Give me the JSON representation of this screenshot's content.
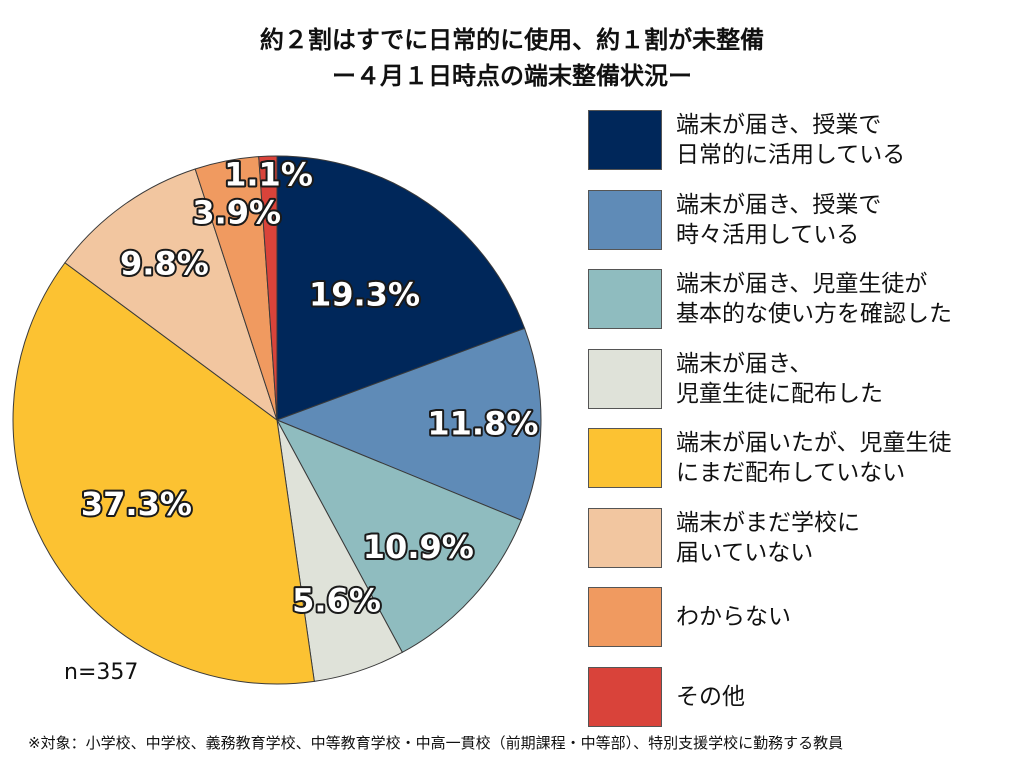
{
  "title": {
    "line1": "約２割はすでに日常的に使用、約１割が未整備",
    "line2": "ー４月１日時点の端末整備状況ー"
  },
  "chart_data": {
    "type": "pie",
    "slices": [
      {
        "label_lines": [
          "端末が届き、授業で",
          "日常的に活用している"
        ],
        "value": 19.3,
        "value_label": "19.3%",
        "color": "#00275a"
      },
      {
        "label_lines": [
          "端末が届き、授業で",
          "時々活用している"
        ],
        "value": 11.8,
        "value_label": "11.8%",
        "color": "#5f8bb7"
      },
      {
        "label_lines": [
          "端末が届き、児童生徒が",
          "基本的な使い方を確認した"
        ],
        "value": 10.9,
        "value_label": "10.9%",
        "color": "#8fbcbf"
      },
      {
        "label_lines": [
          "端末が届き、",
          "児童生徒に配布した"
        ],
        "value": 5.6,
        "value_label": "5.6%",
        "color": "#dfe2d9"
      },
      {
        "label_lines": [
          "端末が届いたが、児童生徒",
          "にまだ配布していない"
        ],
        "value": 37.3,
        "value_label": "37.3%",
        "color": "#fcc232"
      },
      {
        "label_lines": [
          "端末がまだ学校に",
          "届いていない"
        ],
        "value": 9.8,
        "value_label": "9.8%",
        "color": "#f2c6a0"
      },
      {
        "label_lines": [
          "わからない"
        ],
        "value": 3.9,
        "value_label": "3.9%",
        "color": "#f09a60"
      },
      {
        "label_lines": [
          "その他"
        ],
        "value": 1.1,
        "value_label": "1.1%",
        "color": "#d9433a"
      }
    ],
    "legend_placement": "right"
  },
  "sample_size": "n=357",
  "footnote": "※対象：小学校、中学校、義務教育学校、中等教育学校・中高一貫校（前期課程・中等部）、特別支援学校に勤務する教員"
}
